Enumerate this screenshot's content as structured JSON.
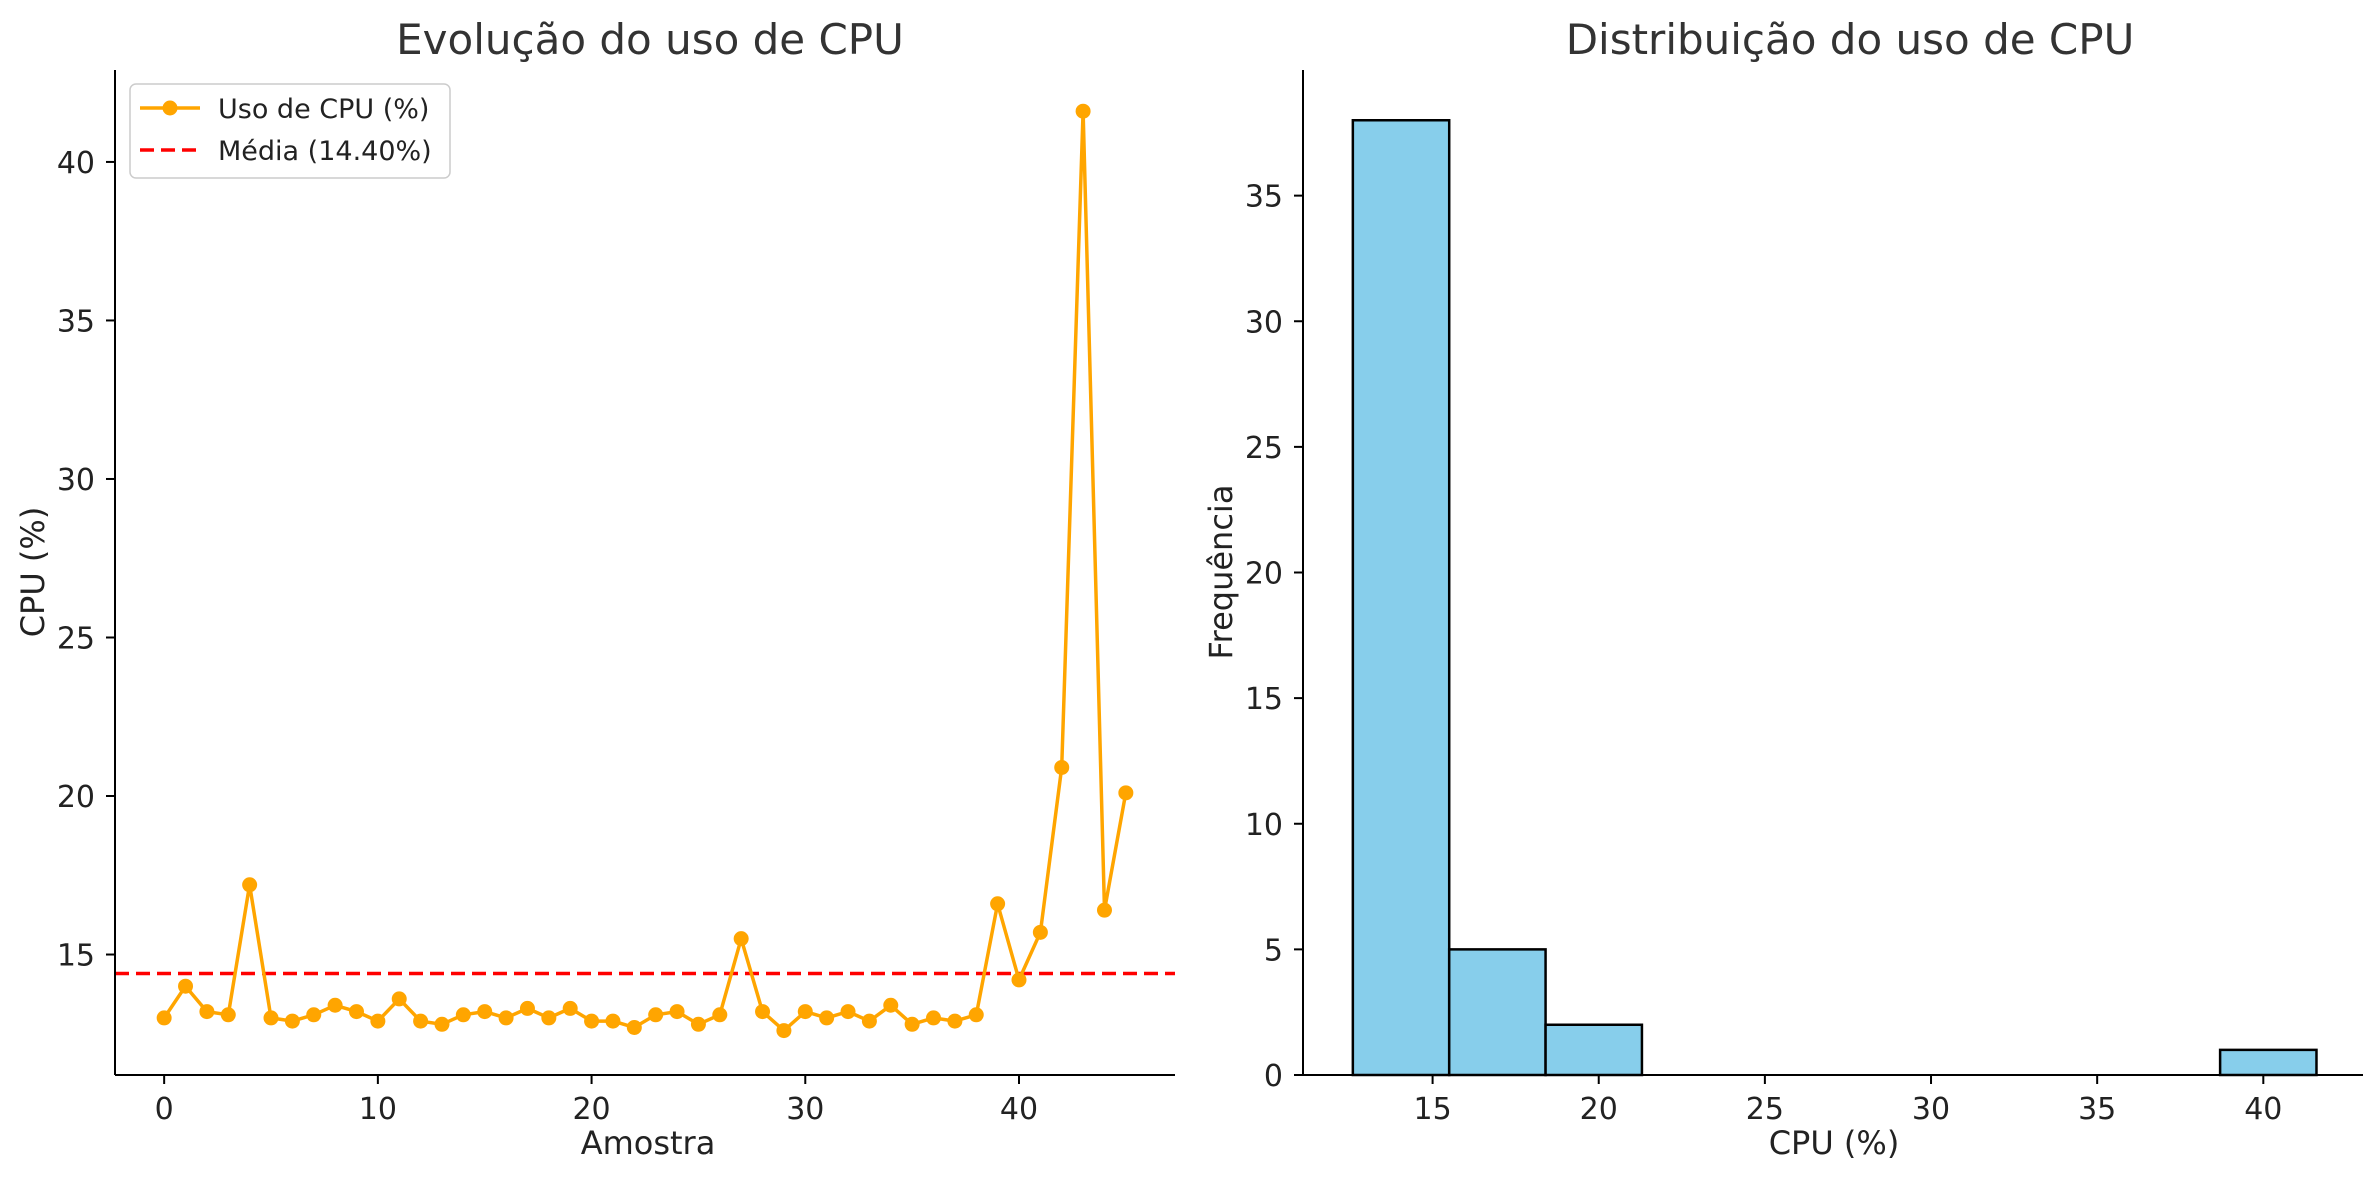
{
  "colors": {
    "line": "#FFA500",
    "mean_line": "#FF0000",
    "hist_fill": "#87CEEB",
    "hist_edge": "#000000",
    "axis": "#000000"
  },
  "chart_data": [
    {
      "type": "line",
      "title": "Evolução do uso de CPU",
      "xlabel": "Amostra",
      "ylabel": "CPU (%)",
      "xlim": [
        -2.3,
        47.3
      ],
      "ylim": [
        11.2,
        42.9
      ],
      "xticks": [
        0,
        10,
        20,
        30,
        40
      ],
      "yticks": [
        15,
        20,
        25,
        30,
        35,
        40
      ],
      "legend_position": "top-left",
      "series": [
        {
          "name": "Uso de CPU (%)",
          "x": [
            0,
            1,
            2,
            3,
            4,
            5,
            6,
            7,
            8,
            9,
            10,
            11,
            12,
            13,
            14,
            15,
            16,
            17,
            18,
            19,
            20,
            21,
            22,
            23,
            24,
            25,
            26,
            27,
            28,
            29,
            30,
            31,
            32,
            33,
            34,
            35,
            36,
            37,
            38,
            39,
            40,
            41,
            42,
            43,
            44,
            45
          ],
          "values": [
            13.0,
            14.0,
            13.2,
            13.1,
            17.2,
            13.0,
            12.9,
            13.1,
            13.4,
            13.2,
            12.9,
            13.6,
            12.9,
            12.8,
            13.1,
            13.2,
            13.0,
            13.3,
            13.0,
            13.3,
            12.9,
            12.9,
            12.7,
            13.1,
            13.2,
            12.8,
            13.1,
            15.5,
            13.2,
            12.6,
            13.2,
            13.0,
            13.2,
            12.9,
            13.4,
            12.8,
            13.0,
            12.9,
            13.1,
            16.6,
            14.2,
            15.7,
            20.9,
            41.6,
            16.4,
            20.1
          ]
        }
      ],
      "reference_lines": [
        {
          "name": "Média (14.40%)",
          "y": 14.4
        }
      ]
    },
    {
      "type": "bar",
      "title": "Distribuição do uso de CPU",
      "xlabel": "CPU (%)",
      "ylabel": "Frequência",
      "xlim": [
        11.1,
        43.0
      ],
      "ylim": [
        0,
        40
      ],
      "xticks": [
        15,
        20,
        25,
        30,
        35,
        40
      ],
      "yticks": [
        0,
        5,
        10,
        15,
        20,
        25,
        30,
        35
      ],
      "bins": [
        {
          "x0": 12.6,
          "x1": 15.5,
          "count": 38
        },
        {
          "x0": 15.5,
          "x1": 18.4,
          "count": 5
        },
        {
          "x0": 18.4,
          "x1": 21.3,
          "count": 2
        },
        {
          "x0": 21.3,
          "x1": 24.2,
          "count": 0
        },
        {
          "x0": 24.2,
          "x1": 27.1,
          "count": 0
        },
        {
          "x0": 27.1,
          "x1": 30.0,
          "count": 0
        },
        {
          "x0": 30.0,
          "x1": 32.9,
          "count": 0
        },
        {
          "x0": 32.9,
          "x1": 35.8,
          "count": 0
        },
        {
          "x0": 35.8,
          "x1": 38.7,
          "count": 0
        },
        {
          "x0": 38.7,
          "x1": 41.6,
          "count": 1
        }
      ]
    }
  ]
}
